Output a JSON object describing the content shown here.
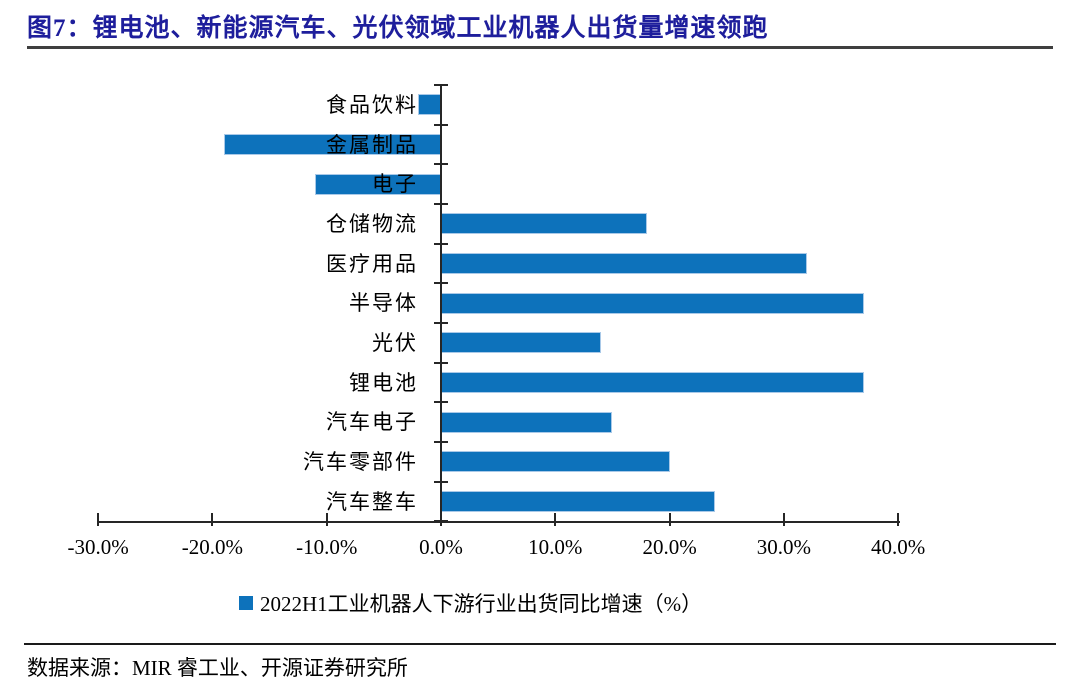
{
  "title": "图7：锂电池、新能源汽车、光伏领域工业机器人出货量增速领跑",
  "footer": {
    "source": "数据来源：MIR 睿工业、开源证券研究所"
  },
  "legend": {
    "label": "2022H1工业机器人下游行业出货同比增速（%）"
  },
  "colors": {
    "bar": "#0D72BB",
    "bar_edge": "#A9C9E8",
    "title": "#1E1E9C",
    "title_rule": "#3F3F3F",
    "axis": "#262626"
  },
  "chart_data": {
    "type": "bar",
    "orientation": "horizontal",
    "title": "图7：锂电池、新能源汽车、光伏领域工业机器人出货量增速领跑",
    "series_name": "2022H1工业机器人下游行业出货同比增速（%）",
    "categories": [
      "食品饮料",
      "金属制品",
      "电子",
      "仓储物流",
      "医疗用品",
      "半导体",
      "光伏",
      "锂电池",
      "汽车电子",
      "汽车零部件",
      "汽车整车"
    ],
    "values": [
      -2.0,
      -19.0,
      -11.0,
      18.0,
      32.0,
      37.0,
      14.0,
      37.0,
      15.0,
      20.0,
      24.0
    ],
    "unit": "%",
    "xlim": [
      -30,
      40
    ],
    "x_ticks": [
      {
        "label": "-30.0%",
        "value": -30
      },
      {
        "label": "-20.0%",
        "value": -20
      },
      {
        "label": "-10.0%",
        "value": -10
      },
      {
        "label": "0.0%",
        "value": 0
      },
      {
        "label": "10.0%",
        "value": 10
      },
      {
        "label": "20.0%",
        "value": 20
      },
      {
        "label": "30.0%",
        "value": 30
      },
      {
        "label": "40.0%",
        "value": 40
      }
    ],
    "grid": false,
    "legend_position": "bottom"
  }
}
